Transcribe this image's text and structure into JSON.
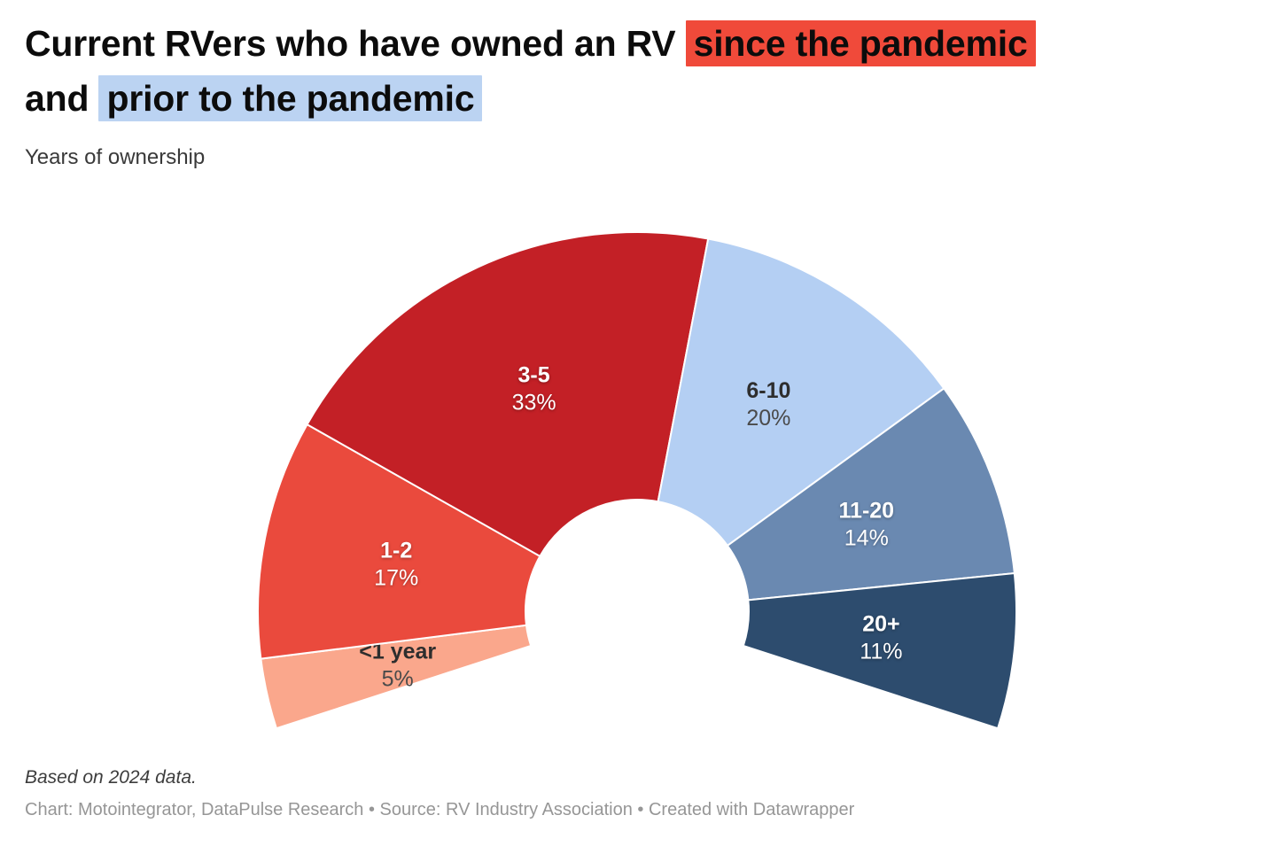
{
  "title": {
    "line1_prefix": "Current RVers who have owned an RV ",
    "line1_highlight": "since the pandemic",
    "line2_prefix": "and ",
    "line2_highlight": "prior to the pandemic",
    "highlight_red_color": "#F04A3A",
    "highlight_blue_color": "#BBD3F2"
  },
  "subtitle": "Years of ownership",
  "chart_data": {
    "type": "pie",
    "variant": "half-donut",
    "title": "Current RVers who have owned an RV since the pandemic and prior to the pandemic",
    "subtitle": "Years of ownership",
    "unit": "%",
    "arc_degrees": 216,
    "start_angle_deg": 198,
    "legend_position": "none",
    "categories": [
      "<1 year",
      "1-2",
      "3-5",
      "6-10",
      "11-20",
      "20+"
    ],
    "values": [
      5,
      17,
      33,
      20,
      14,
      11
    ],
    "colors": [
      "#FAA78C",
      "#EA4A3D",
      "#C32026",
      "#B4CFF3",
      "#6A89B1",
      "#2D4C6E"
    ],
    "label_styles": [
      "dark",
      "light",
      "light",
      "dark",
      "light",
      "light"
    ],
    "label_dark_category_color": "#2e2e2e",
    "label_dark_value_color": "#4a4a4a",
    "label_light_color": "#ffffff"
  },
  "footer": {
    "note": "Based on 2024 data.",
    "byline": "Chart: Motointegrator, DataPulse Research • Source: RV Industry Association • Created with Datawrapper"
  }
}
